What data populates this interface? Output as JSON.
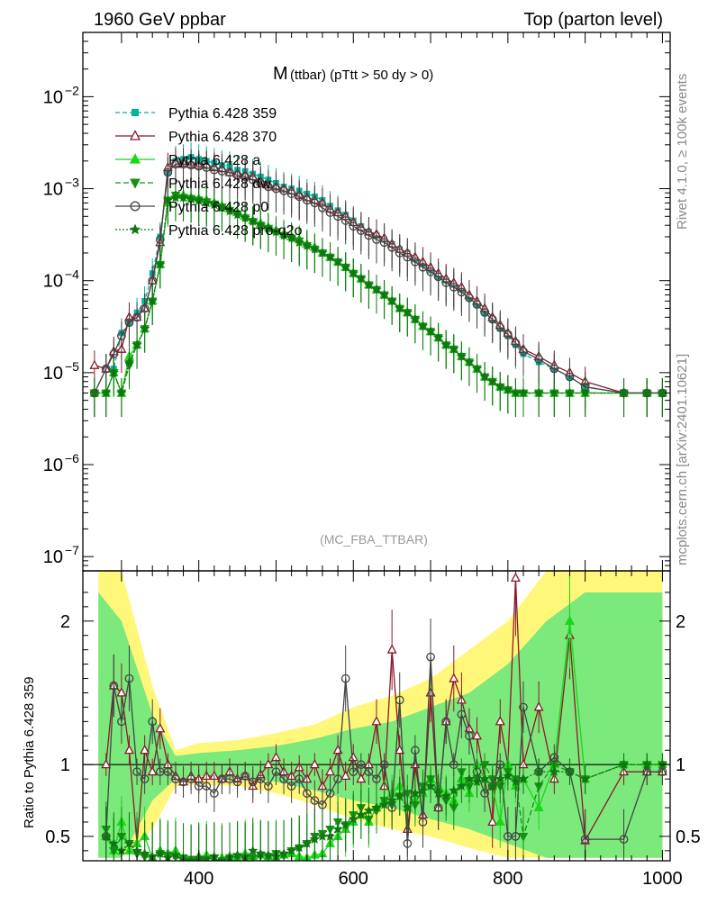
{
  "header": {
    "left": "1960 GeV ppbar",
    "right": "Top (parton level)"
  },
  "side_labels": {
    "rivet": "Rivet 4.1.0, ≥ 100k events",
    "mcplots": "mcplots.cern.ch [arXiv:2401.10621]"
  },
  "plot_title": {
    "main": "M",
    "sub": "(ttbar) (pTtt > 50 dy > 0)"
  },
  "watermark": "(MC_FBA_TTBAR)",
  "ratio_ylabel": "Ratio to Pythia 6.428 359",
  "colors": {
    "p359": "#00b39b",
    "p370": "#8b1a2b",
    "pa": "#18d818",
    "pdw": "#119411",
    "pp0": "#444444",
    "pq2o": "#117711",
    "band_yellow": "#fff77a",
    "band_green": "#7be97b"
  },
  "chart_data": [
    {
      "type": "line",
      "title": "M (ttbar) (pTtt > 50 dy > 0)",
      "xlabel": "",
      "ylabel": "",
      "xlim": [
        250,
        1010
      ],
      "ylim": [
        7e-08,
        0.05
      ],
      "yscale": "log",
      "x_ticks": [
        400,
        600,
        800,
        1000
      ],
      "y_ticks": [
        {
          "v": 1e-07,
          "base": "10",
          "exp": "−7"
        },
        {
          "v": 1e-06,
          "base": "10",
          "exp": "−6"
        },
        {
          "v": 1e-05,
          "base": "10",
          "exp": "−5"
        },
        {
          "v": 0.0001,
          "base": "10",
          "exp": "−4"
        },
        {
          "v": 0.001,
          "base": "10",
          "exp": "−3"
        },
        {
          "v": 0.01,
          "base": "10",
          "exp": "−2"
        }
      ],
      "x": [
        265,
        280,
        290,
        300,
        310,
        320,
        330,
        340,
        350,
        360,
        370,
        380,
        390,
        400,
        410,
        420,
        430,
        440,
        450,
        460,
        470,
        480,
        490,
        500,
        510,
        520,
        530,
        540,
        550,
        560,
        570,
        580,
        590,
        600,
        610,
        620,
        630,
        640,
        650,
        660,
        670,
        680,
        690,
        700,
        710,
        720,
        730,
        740,
        750,
        760,
        770,
        780,
        790,
        800,
        810,
        820,
        840,
        860,
        880,
        900,
        950,
        980,
        1000
      ],
      "series": [
        {
          "name": "Pythia 6.428 359",
          "key": "p359",
          "dash": "5,3",
          "marker": "square",
          "values": [
            6e-06,
            1.1e-05,
            1.1e-05,
            2.7e-05,
            3.5e-05,
            4.5e-05,
            6e-05,
            0.00012,
            0.0003,
            0.0015,
            0.002,
            0.0021,
            0.0022,
            0.0021,
            0.002,
            0.0019,
            0.0018,
            0.00175,
            0.0016,
            0.00155,
            0.00145,
            0.00135,
            0.00125,
            0.00115,
            0.00105,
            0.001,
            0.00095,
            0.00088,
            0.00082,
            0.00075,
            0.00065,
            0.00058,
            0.00052,
            0.00045,
            0.00039,
            0.00034,
            0.00031,
            0.00028,
            0.00025,
            0.00022,
            0.0002,
            0.00017,
            0.00015,
            0.00013,
            0.00011,
            0.0001,
            9e-05,
            8e-05,
            6.5e-05,
            5.5e-05,
            4.5e-05,
            3.8e-05,
            3e-05,
            2.5e-05,
            2e-05,
            1.6e-05,
            1.3e-05,
            1.1e-05,
            9e-06,
            7e-06,
            6e-06,
            6e-06,
            6e-06
          ]
        },
        {
          "name": "Pythia 6.428 370",
          "key": "p370",
          "dash": "",
          "marker": "triangle-open",
          "values": [
            1.2e-05,
            1.1e-05,
            1.7e-05,
            1.8e-05,
            4e-05,
            4e-05,
            5e-05,
            0.0001,
            0.00026,
            0.0017,
            0.0019,
            0.0019,
            0.00185,
            0.0018,
            0.0018,
            0.0017,
            0.00165,
            0.0015,
            0.00145,
            0.0014,
            0.00135,
            0.0012,
            0.0011,
            0.00105,
            0.001,
            0.00095,
            0.00085,
            0.0008,
            0.00075,
            0.0007,
            0.0006,
            0.00055,
            0.0005,
            0.00043,
            0.00038,
            0.00034,
            0.00032,
            0.00029,
            0.00025,
            0.00022,
            0.0002,
            0.00018,
            0.00016,
            0.00014,
            0.00012,
            0.000105,
            9.5e-05,
            8.5e-05,
            7e-05,
            6e-05,
            5e-05,
            4e-05,
            3.3e-05,
            2.7e-05,
            2.2e-05,
            1.8e-05,
            1.5e-05,
            1.2e-05,
            1e-05,
            8e-06,
            6e-06,
            6e-06,
            6e-06
          ]
        },
        {
          "name": "Pythia 6.428 a",
          "key": "pa",
          "dash": "",
          "marker": "triangle",
          "values": [
            6e-06,
            6e-06,
            1e-05,
            6e-06,
            1.5e-05,
            2e-05,
            3e-05,
            6e-05,
            0.00015,
            0.0007,
            0.00085,
            0.00085,
            0.0008,
            0.00078,
            0.00075,
            0.0007,
            0.00065,
            0.0006,
            0.00055,
            0.0005,
            0.00045,
            0.00042,
            0.00038,
            0.00035,
            0.00032,
            0.0003,
            0.00028,
            0.00025,
            0.00023,
            0.0002,
            0.00018,
            0.00016,
            0.00014,
            0.00012,
            0.000105,
            9e-05,
            8e-05,
            7e-05,
            6e-05,
            5e-05,
            4.5e-05,
            3.8e-05,
            3.2e-05,
            2.8e-05,
            2.4e-05,
            2e-05,
            1.8e-05,
            1.5e-05,
            1.3e-05,
            1.1e-05,
            9e-06,
            8e-06,
            7e-06,
            6.5e-06,
            6e-06,
            6e-06,
            6e-06,
            6e-06,
            6e-06,
            6e-06,
            6e-06,
            6e-06,
            6e-06
          ]
        },
        {
          "name": "Pythia 6.428 dw",
          "key": "pdw",
          "dash": "6,3",
          "marker": "triangle-down",
          "values": [
            6e-06,
            6e-06,
            1e-05,
            6e-06,
            1.2e-05,
            2e-05,
            3e-05,
            6e-05,
            0.00015,
            0.00075,
            0.00085,
            0.0008,
            0.00078,
            0.00075,
            0.00072,
            0.00068,
            0.00063,
            0.00058,
            0.00053,
            0.00048,
            0.00044,
            0.0004,
            0.00037,
            0.00034,
            0.00031,
            0.00029,
            0.00027,
            0.00024,
            0.00022,
            0.0002,
            0.00018,
            0.00016,
            0.00014,
            0.00012,
            0.000105,
            9e-05,
            8e-05,
            7e-05,
            6e-05,
            5e-05,
            4.5e-05,
            3.8e-05,
            3.2e-05,
            2.8e-05,
            2.4e-05,
            2e-05,
            1.8e-05,
            1.5e-05,
            1.3e-05,
            1.1e-05,
            9e-06,
            8e-06,
            7e-06,
            6.5e-06,
            6e-06,
            6e-06,
            6e-06,
            6e-06,
            6e-06,
            6e-06,
            6e-06,
            6e-06,
            6e-06
          ]
        },
        {
          "name": "Pythia 6.428 p0",
          "key": "pp0",
          "dash": "",
          "marker": "circle-open",
          "values": [
            6e-06,
            1.1e-05,
            1.6e-05,
            2.5e-05,
            3.5e-05,
            4e-05,
            5e-05,
            0.0001,
            0.00028,
            0.0015,
            0.00185,
            0.00185,
            0.0018,
            0.00175,
            0.0017,
            0.0016,
            0.00155,
            0.0015,
            0.0014,
            0.00135,
            0.00125,
            0.00115,
            0.00105,
            0.001,
            0.00095,
            0.00088,
            0.00082,
            0.00075,
            0.0007,
            0.00062,
            0.00055,
            0.0005,
            0.00045,
            0.00039,
            0.00035,
            0.00031,
            0.00028,
            0.00026,
            0.00023,
            0.0002,
            0.00018,
            0.00016,
            0.00014,
            0.000125,
            0.00011,
            9.5e-05,
            8.5e-05,
            7.5e-05,
            6.5e-05,
            5.5e-05,
            4.5e-05,
            3.8e-05,
            3.1e-05,
            2.6e-05,
            2.1e-05,
            1.7e-05,
            1.4e-05,
            1.1e-05,
            9e-06,
            7e-06,
            6e-06,
            6e-06,
            6e-06
          ]
        },
        {
          "name": "Pythia 6.428 pro-q2o",
          "key": "pq2o",
          "dash": "2,2",
          "marker": "star",
          "values": [
            6e-06,
            6e-06,
            1e-05,
            6e-06,
            1.3e-05,
            2e-05,
            3e-05,
            6e-05,
            0.00015,
            0.00075,
            0.0008,
            0.0008,
            0.00077,
            0.00074,
            0.0007,
            0.00067,
            0.00062,
            0.00057,
            0.00052,
            0.00048,
            0.00044,
            0.0004,
            0.00037,
            0.00034,
            0.00031,
            0.00029,
            0.00026,
            0.00024,
            0.00022,
            0.0002,
            0.00018,
            0.00016,
            0.00014,
            0.00012,
            0.000105,
            9e-05,
            8e-05,
            7e-05,
            6e-05,
            5e-05,
            4.5e-05,
            3.8e-05,
            3.2e-05,
            2.8e-05,
            2.4e-05,
            2e-05,
            1.8e-05,
            1.5e-05,
            1.3e-05,
            1.1e-05,
            9e-06,
            8e-06,
            7e-06,
            6.5e-06,
            6e-06,
            6e-06,
            6e-06,
            6e-06,
            6e-06,
            6e-06,
            6e-06,
            6e-06,
            6e-06
          ]
        }
      ]
    },
    {
      "type": "line",
      "title": "",
      "xlabel": "",
      "ylabel": "Ratio to Pythia 6.428 359",
      "xlim": [
        250,
        1010
      ],
      "ylim": [
        0.33,
        2.35
      ],
      "x_ticks": [
        400,
        600,
        800,
        1000
      ],
      "y_ticks": [
        0.5,
        1,
        2
      ],
      "reference_line": 1,
      "x": [
        280,
        290,
        300,
        310,
        320,
        330,
        340,
        350,
        360,
        370,
        380,
        390,
        400,
        410,
        420,
        430,
        440,
        450,
        460,
        470,
        480,
        490,
        500,
        510,
        520,
        530,
        540,
        550,
        560,
        570,
        580,
        590,
        600,
        610,
        620,
        630,
        640,
        650,
        660,
        670,
        680,
        690,
        700,
        710,
        720,
        730,
        740,
        750,
        760,
        770,
        780,
        790,
        800,
        810,
        820,
        840,
        860,
        880,
        900,
        950,
        980,
        1000
      ],
      "bands": {
        "x": [
          270,
          300,
          340,
          370,
          400,
          450,
          500,
          550,
          600,
          650,
          700,
          750,
          800,
          850,
          900,
          950,
          1000
        ],
        "yellow_low": [
          0.35,
          0.35,
          0.55,
          0.85,
          0.86,
          0.85,
          0.8,
          0.72,
          0.62,
          0.55,
          0.5,
          0.42,
          0.35,
          0.35,
          0.35,
          0.35,
          0.35
        ],
        "yellow_high": [
          2.35,
          2.35,
          1.55,
          1.1,
          1.15,
          1.17,
          1.22,
          1.28,
          1.4,
          1.48,
          1.6,
          1.8,
          2.0,
          2.35,
          2.35,
          2.35,
          2.35
        ],
        "green_low": [
          0.35,
          0.35,
          0.75,
          0.9,
          0.92,
          0.9,
          0.88,
          0.82,
          0.75,
          0.7,
          0.62,
          0.55,
          0.45,
          0.35,
          0.35,
          0.35,
          0.35
        ],
        "green_high": [
          2.2,
          2.0,
          1.35,
          1.06,
          1.08,
          1.1,
          1.13,
          1.18,
          1.25,
          1.3,
          1.4,
          1.5,
          1.7,
          2.0,
          2.2,
          2.2,
          2.2
        ]
      },
      "series": [
        {
          "name": "Pythia 6.428 370",
          "key": "p370",
          "values": [
            1.0,
            1.55,
            1.5,
            1.1,
            0.45,
            1.1,
            0.95,
            1.25,
            1.0,
            0.92,
            0.88,
            0.92,
            0.9,
            0.92,
            0.92,
            0.9,
            0.95,
            0.9,
            0.92,
            0.85,
            0.93,
            1.0,
            1.05,
            0.95,
            0.92,
            0.98,
            0.9,
            1.0,
            0.85,
            0.95,
            1.1,
            0.92,
            1.05,
            0.9,
            1.0,
            1.3,
            0.85,
            1.8,
            1.1,
            0.55,
            1.0,
            0.65,
            1.5,
            0.7,
            1.3,
            1.6,
            1.45,
            1.25,
            1.2,
            0.9,
            0.6,
            1.3,
            1.0,
            2.3,
            1.0,
            1.4,
            0.9,
            1.9,
            0.47,
            0.95,
            0.95,
            0.95
          ]
        },
        {
          "name": "Pythia 6.428 a",
          "key": "pa",
          "values": [
            0.5,
            0.4,
            0.6,
            0.4,
            0.45,
            0.5,
            0.35,
            0.4,
            0.38,
            0.4,
            0.35,
            0.33,
            0.36,
            0.37,
            0.33,
            0.35,
            0.36,
            0.35,
            0.38,
            0.36,
            0.37,
            0.36,
            0.35,
            0.37,
            0.38,
            0.36,
            0.35,
            0.37,
            0.38,
            0.45,
            0.5,
            0.55,
            0.6,
            0.65,
            0.6,
            0.7,
            0.75,
            0.8,
            0.85,
            0.7,
            0.75,
            0.8,
            0.9,
            0.85,
            0.8,
            0.75,
            0.9,
            0.8,
            1.0,
            0.9,
            0.85,
            0.6,
            1.0,
            0.85,
            0.9,
            0.7,
            1.0,
            2.0,
            0.9,
            1.0,
            1.0,
            1.0
          ]
        },
        {
          "name": "Pythia 6.428 dw",
          "key": "pdw",
          "values": [
            0.55,
            0.4,
            0.5,
            0.45,
            0.38,
            0.36,
            0.35,
            0.38,
            0.37,
            0.36,
            0.35,
            0.34,
            0.33,
            0.34,
            0.35,
            0.33,
            0.35,
            0.36,
            0.34,
            0.35,
            0.37,
            0.36,
            0.38,
            0.37,
            0.4,
            0.42,
            0.45,
            0.5,
            0.52,
            0.55,
            0.6,
            0.58,
            0.65,
            0.7,
            0.62,
            0.68,
            0.75,
            0.72,
            0.78,
            0.8,
            0.72,
            0.85,
            0.9,
            0.8,
            0.75,
            0.7,
            0.95,
            0.85,
            0.9,
            1.0,
            0.9,
            0.85,
            0.95,
            0.9,
            0.5,
            0.85,
            1.0,
            0.95,
            0.9,
            1.0,
            1.0,
            1.0
          ]
        },
        {
          "name": "Pythia 6.428 p0",
          "key": "pp0",
          "values": [
            0.5,
            1.55,
            1.3,
            1.6,
            0.95,
            0.9,
            1.3,
            0.95,
            0.95,
            0.9,
            0.88,
            0.9,
            0.85,
            0.85,
            0.8,
            0.9,
            0.9,
            0.88,
            0.92,
            0.88,
            0.9,
            0.85,
            0.95,
            0.9,
            0.85,
            0.9,
            0.8,
            0.75,
            0.72,
            0.8,
            0.9,
            1.6,
            0.95,
            1.0,
            0.95,
            0.9,
            1.0,
            0.7,
            1.45,
            0.45,
            1.1,
            0.6,
            1.75,
            0.7,
            1.3,
            1.0,
            1.35,
            1.2,
            0.95,
            0.8,
            0.85,
            1.0,
            0.5,
            0.5,
            1.4,
            0.95,
            1.05,
            0.95,
            0.48,
            0.48,
            0.95,
            0.95
          ]
        },
        {
          "name": "Pythia 6.428 pro-q2o",
          "key": "pq2o",
          "values": [
            0.5,
            0.45,
            0.4,
            0.45,
            0.4,
            0.38,
            0.36,
            0.38,
            0.35,
            0.37,
            0.34,
            0.33,
            0.35,
            0.34,
            0.36,
            0.33,
            0.35,
            0.37,
            0.36,
            0.4,
            0.38,
            0.37,
            0.36,
            0.38,
            0.4,
            0.42,
            0.45,
            0.48,
            0.5,
            0.5,
            0.55,
            0.58,
            0.62,
            0.65,
            0.68,
            0.7,
            0.72,
            0.75,
            0.78,
            0.7,
            0.8,
            0.82,
            0.85,
            0.8,
            0.78,
            0.82,
            0.85,
            0.9,
            0.88,
            0.9,
            0.85,
            0.9,
            0.92,
            0.88,
            0.9,
            0.95,
            0.95,
            0.95,
            0.9,
            1.0,
            1.0,
            1.0
          ]
        }
      ]
    }
  ]
}
